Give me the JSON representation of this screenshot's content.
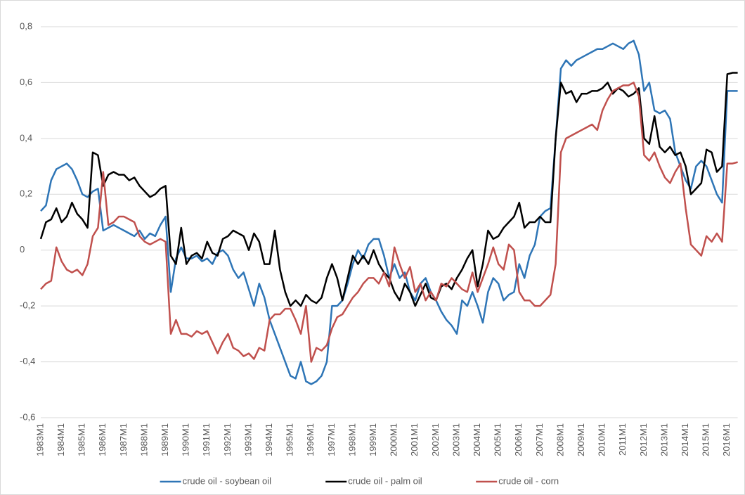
{
  "chart_data": {
    "type": "line",
    "categories": [
      "1983M1",
      null,
      null,
      null,
      "1984M1",
      null,
      null,
      null,
      "1985M1",
      null,
      null,
      null,
      "1986M1",
      null,
      null,
      null,
      "1987M1",
      null,
      null,
      null,
      "1988M1",
      null,
      null,
      null,
      "1989M1",
      null,
      null,
      null,
      "1990M1",
      null,
      null,
      null,
      "1991M1",
      null,
      null,
      null,
      "1992M1",
      null,
      null,
      null,
      "1993M1",
      null,
      null,
      null,
      "1994M1",
      null,
      null,
      null,
      "1995M1",
      null,
      null,
      null,
      "1996M1",
      null,
      null,
      null,
      "1997M1",
      null,
      null,
      null,
      "1998M1",
      null,
      null,
      null,
      "1999M1",
      null,
      null,
      null,
      "2000M1",
      null,
      null,
      null,
      "2001M1",
      null,
      null,
      null,
      "2002M1",
      null,
      null,
      null,
      "2003M1",
      null,
      null,
      null,
      "2004M1",
      null,
      null,
      null,
      "2005M1",
      null,
      null,
      null,
      "2006M1",
      null,
      null,
      null,
      "2007M1",
      null,
      null,
      null,
      "2008M1",
      null,
      null,
      null,
      "2009M1",
      null,
      null,
      null,
      "2010M1",
      null,
      null,
      null,
      "2011M1",
      null,
      null,
      null,
      "2012M1",
      null,
      null,
      null,
      "2013M1",
      null,
      null,
      null,
      "2014M1",
      null,
      null,
      null,
      "2015M1",
      null,
      null,
      null,
      "2016M1",
      null,
      null
    ],
    "series": [
      {
        "name": "crude oil - soybean oil",
        "color": "#2e75b6",
        "values": [
          0.14,
          0.16,
          0.25,
          0.29,
          0.3,
          0.31,
          0.29,
          0.25,
          0.2,
          0.19,
          0.21,
          0.22,
          0.07,
          0.08,
          0.09,
          0.08,
          0.07,
          0.06,
          0.05,
          0.07,
          0.04,
          0.06,
          0.05,
          0.09,
          0.12,
          -0.15,
          -0.03,
          0.01,
          -0.03,
          -0.03,
          -0.02,
          -0.04,
          -0.03,
          -0.05,
          -0.01,
          0.0,
          -0.02,
          -0.07,
          -0.1,
          -0.08,
          -0.14,
          -0.2,
          -0.12,
          -0.17,
          -0.25,
          -0.3,
          -0.35,
          -0.4,
          -0.45,
          -0.46,
          -0.4,
          -0.47,
          -0.48,
          -0.47,
          -0.45,
          -0.4,
          -0.2,
          -0.2,
          -0.18,
          -0.12,
          -0.05,
          0.0,
          -0.03,
          0.02,
          0.04,
          0.04,
          -0.02,
          -0.1,
          -0.05,
          -0.1,
          -0.08,
          -0.15,
          -0.18,
          -0.12,
          -0.1,
          -0.15,
          -0.18,
          -0.22,
          -0.25,
          -0.27,
          -0.3,
          -0.18,
          -0.2,
          -0.15,
          -0.2,
          -0.26,
          -0.15,
          -0.1,
          -0.12,
          -0.18,
          -0.16,
          -0.15,
          -0.05,
          -0.1,
          -0.02,
          0.02,
          0.12,
          0.14,
          0.15,
          0.4,
          0.65,
          0.68,
          0.66,
          0.68,
          0.69,
          0.7,
          0.71,
          0.72,
          0.72,
          0.73,
          0.74,
          0.73,
          0.72,
          0.74,
          0.75,
          0.7,
          0.57,
          0.6,
          0.5,
          0.49,
          0.5,
          0.47,
          0.35,
          0.3,
          0.25,
          0.22,
          0.3,
          0.32,
          0.3,
          0.25,
          0.2,
          0.17,
          0.57,
          0.57,
          0.57
        ]
      },
      {
        "name": "crude oil - palm oil",
        "color": "#000000",
        "values": [
          0.04,
          0.1,
          0.11,
          0.15,
          0.1,
          0.12,
          0.17,
          0.13,
          0.11,
          0.08,
          0.35,
          0.34,
          0.23,
          0.27,
          0.28,
          0.27,
          0.27,
          0.25,
          0.26,
          0.23,
          0.21,
          0.19,
          0.2,
          0.22,
          0.23,
          -0.02,
          -0.05,
          0.08,
          -0.05,
          -0.02,
          -0.01,
          -0.03,
          0.03,
          -0.01,
          -0.02,
          0.04,
          0.05,
          0.07,
          0.06,
          0.05,
          0.0,
          0.06,
          0.03,
          -0.05,
          -0.05,
          0.07,
          -0.07,
          -0.15,
          -0.2,
          -0.18,
          -0.2,
          -0.16,
          -0.18,
          -0.19,
          -0.17,
          -0.1,
          -0.05,
          -0.1,
          -0.18,
          -0.1,
          -0.02,
          -0.05,
          -0.02,
          -0.05,
          0.0,
          -0.05,
          -0.08,
          -0.1,
          -0.15,
          -0.18,
          -0.12,
          -0.15,
          -0.2,
          -0.16,
          -0.12,
          -0.17,
          -0.18,
          -0.13,
          -0.12,
          -0.14,
          -0.1,
          -0.07,
          -0.03,
          0.0,
          -0.13,
          -0.05,
          0.07,
          0.04,
          0.05,
          0.08,
          0.1,
          0.12,
          0.17,
          0.08,
          0.1,
          0.1,
          0.12,
          0.1,
          0.1,
          0.4,
          0.6,
          0.56,
          0.57,
          0.53,
          0.56,
          0.56,
          0.57,
          0.57,
          0.58,
          0.6,
          0.56,
          0.58,
          0.57,
          0.55,
          0.56,
          0.58,
          0.4,
          0.38,
          0.48,
          0.37,
          0.35,
          0.37,
          0.34,
          0.35,
          0.3,
          0.2,
          0.22,
          0.24,
          0.36,
          0.35,
          0.28,
          0.3,
          0.63,
          0.635,
          0.635
        ]
      },
      {
        "name": "crude oil - corn",
        "color": "#c0504d",
        "values": [
          -0.14,
          -0.12,
          -0.11,
          0.01,
          -0.04,
          -0.07,
          -0.08,
          -0.07,
          -0.09,
          -0.05,
          0.05,
          0.08,
          0.28,
          0.09,
          0.1,
          0.12,
          0.12,
          0.11,
          0.1,
          0.05,
          0.03,
          0.02,
          0.03,
          0.04,
          0.03,
          -0.3,
          -0.25,
          -0.3,
          -0.3,
          -0.31,
          -0.29,
          -0.3,
          -0.29,
          -0.33,
          -0.37,
          -0.33,
          -0.3,
          -0.35,
          -0.36,
          -0.38,
          -0.37,
          -0.39,
          -0.35,
          -0.36,
          -0.25,
          -0.23,
          -0.23,
          -0.21,
          -0.21,
          -0.25,
          -0.3,
          -0.2,
          -0.4,
          -0.35,
          -0.36,
          -0.34,
          -0.28,
          -0.24,
          -0.23,
          -0.2,
          -0.17,
          -0.15,
          -0.12,
          -0.1,
          -0.1,
          -0.12,
          -0.08,
          -0.13,
          0.01,
          -0.05,
          -0.1,
          -0.06,
          -0.15,
          -0.12,
          -0.18,
          -0.15,
          -0.18,
          -0.12,
          -0.13,
          -0.1,
          -0.12,
          -0.14,
          -0.15,
          -0.08,
          -0.15,
          -0.1,
          -0.05,
          0.01,
          -0.05,
          -0.07,
          0.02,
          0.0,
          -0.15,
          -0.18,
          -0.18,
          -0.2,
          -0.2,
          -0.18,
          -0.16,
          -0.05,
          0.35,
          0.4,
          0.41,
          0.42,
          0.43,
          0.44,
          0.45,
          0.43,
          0.5,
          0.54,
          0.57,
          0.58,
          0.59,
          0.59,
          0.6,
          0.55,
          0.34,
          0.32,
          0.35,
          0.3,
          0.26,
          0.24,
          0.28,
          0.31,
          0.15,
          0.02,
          0.0,
          -0.02,
          0.05,
          0.03,
          0.06,
          0.03,
          0.31,
          0.31,
          0.315
        ]
      }
    ],
    "ylim": [
      -0.6,
      0.8
    ],
    "yticks": [
      {
        "value": -0.6,
        "label": "-0,6"
      },
      {
        "value": -0.4,
        "label": "-0,4"
      },
      {
        "value": -0.2,
        "label": "-0,2"
      },
      0,
      {
        "value": 0.2,
        "label": "0,2"
      },
      {
        "value": 0.4,
        "label": "0,4"
      },
      {
        "value": 0.6,
        "label": "0,6"
      },
      {
        "value": 0.8,
        "label": "0,8"
      }
    ],
    "grid": true,
    "legend": "bottom"
  }
}
